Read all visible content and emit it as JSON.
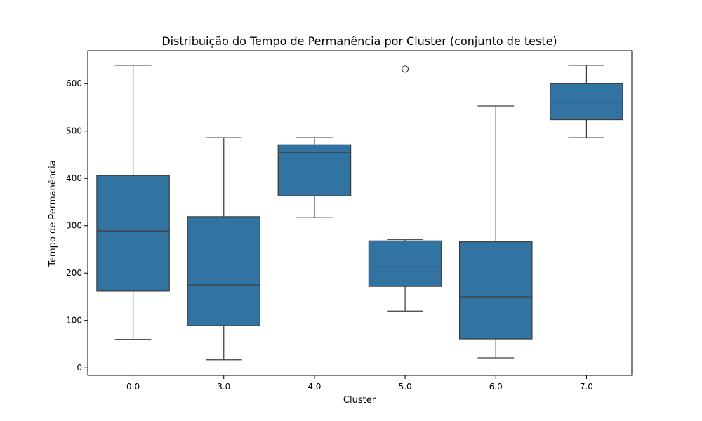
{
  "chart_data": {
    "type": "boxplot",
    "title": "Distribuição do Tempo de Permanência por Cluster (conjunto de teste)",
    "xlabel": "Cluster",
    "ylabel": "Tempo de Permanência",
    "categories": [
      "0.0",
      "3.0",
      "4.0",
      "5.0",
      "6.0",
      "7.0"
    ],
    "yticks": [
      0,
      100,
      200,
      300,
      400,
      500,
      600
    ],
    "ylim": [
      -16,
      670
    ],
    "grid": false,
    "box_color": "#3274a1",
    "line_color": "#3d3d3d",
    "boxes": [
      {
        "category": "0.0",
        "whisker_low": 60,
        "q1": 162,
        "median": 289,
        "q3": 406,
        "whisker_high": 639,
        "outliers": []
      },
      {
        "category": "3.0",
        "whisker_low": 17,
        "q1": 89,
        "median": 175,
        "q3": 319,
        "whisker_high": 486,
        "outliers": []
      },
      {
        "category": "4.0",
        "whisker_low": 317,
        "q1": 363,
        "median": 455,
        "q3": 471,
        "whisker_high": 486,
        "outliers": []
      },
      {
        "category": "5.0",
        "whisker_low": 120,
        "q1": 172,
        "median": 213,
        "q3": 268,
        "whisker_high": 271,
        "outliers": [
          631
        ]
      },
      {
        "category": "6.0",
        "whisker_low": 21,
        "q1": 61,
        "median": 150,
        "q3": 266,
        "whisker_high": 553,
        "outliers": []
      },
      {
        "category": "7.0",
        "whisker_low": 486,
        "q1": 524,
        "median": 561,
        "q3": 600,
        "whisker_high": 639,
        "outliers": []
      }
    ]
  }
}
